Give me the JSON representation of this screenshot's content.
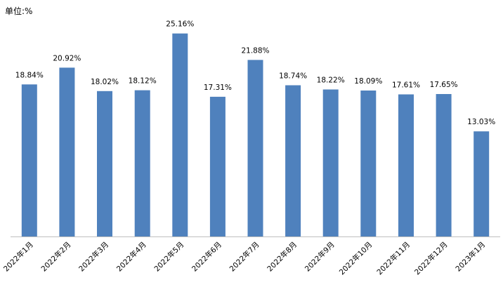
{
  "unit_label": "单位:%",
  "colors": {
    "bar": "#4F81BD",
    "axis": "#BFBFBF"
  },
  "chart_data": {
    "type": "bar",
    "title": "",
    "xlabel": "",
    "ylabel": "",
    "ylim": [
      0,
      28
    ],
    "grid": false,
    "categories": [
      "2022年1月",
      "2022年2月",
      "2022年3月",
      "2022年4月",
      "2022年5月",
      "2022年6月",
      "2022年7月",
      "2022年8月",
      "2022年9月",
      "2022年10月",
      "2022年11月",
      "2022年12月",
      "2023年1月"
    ],
    "values": [
      18.84,
      20.92,
      18.02,
      18.12,
      25.16,
      17.31,
      21.88,
      18.74,
      18.22,
      18.09,
      17.61,
      17.65,
      13.03
    ],
    "data_labels": [
      "18.84%",
      "20.92%",
      "18.02%",
      "18.12%",
      "25.16%",
      "17.31%",
      "21.88%",
      "18.74%",
      "18.22%",
      "18.09%",
      "17.61%",
      "17.65%",
      "13.03%"
    ]
  }
}
